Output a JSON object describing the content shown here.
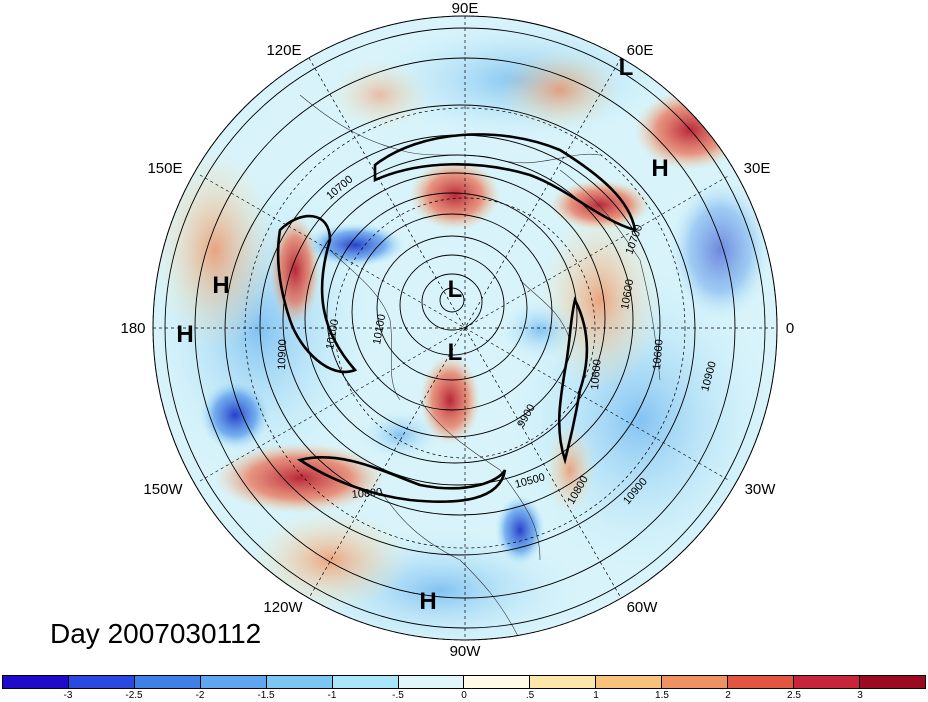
{
  "title": "Day 2007030112",
  "lon_labels": {
    "e90": "90E",
    "e120": "120E",
    "e60": "60E",
    "e150": "150E",
    "e30": "30E",
    "w180": "180",
    "e0": "0",
    "w150": "150W",
    "w30": "30W",
    "w120": "120W",
    "w60": "60W",
    "w90": "90W"
  },
  "pressure_centers": [
    {
      "label": "L",
      "name": "low-60e"
    },
    {
      "label": "H",
      "name": "high-30e"
    },
    {
      "label": "H",
      "name": "high-170e"
    },
    {
      "label": "H",
      "name": "high-180"
    },
    {
      "label": "L",
      "name": "low-pole-a"
    },
    {
      "label": "L",
      "name": "low-pole-b"
    },
    {
      "label": "H",
      "name": "high-90w"
    }
  ],
  "contour_labels": [
    "10700",
    "10700",
    "10600",
    "10900",
    "10100",
    "10100",
    "10600",
    "10600",
    "10900",
    "9900",
    "10500",
    "10800",
    "10900",
    "10800"
  ],
  "colorbar": {
    "colors": [
      "#1e0bcc",
      "#2a48e2",
      "#3f7fe8",
      "#5fa6f0",
      "#7cc6f4",
      "#a9e6f9",
      "#dff7fb",
      "#fffbe6",
      "#fde7a8",
      "#f8c27d",
      "#f09163",
      "#e2553f",
      "#c8243a",
      "#9c0a22"
    ],
    "labels": [
      "-3",
      "-2.5",
      "-2",
      "-1.5",
      "-1",
      "-.5",
      "0",
      ".5",
      "1",
      "1.5",
      "2",
      "2.5",
      "3"
    ]
  }
}
